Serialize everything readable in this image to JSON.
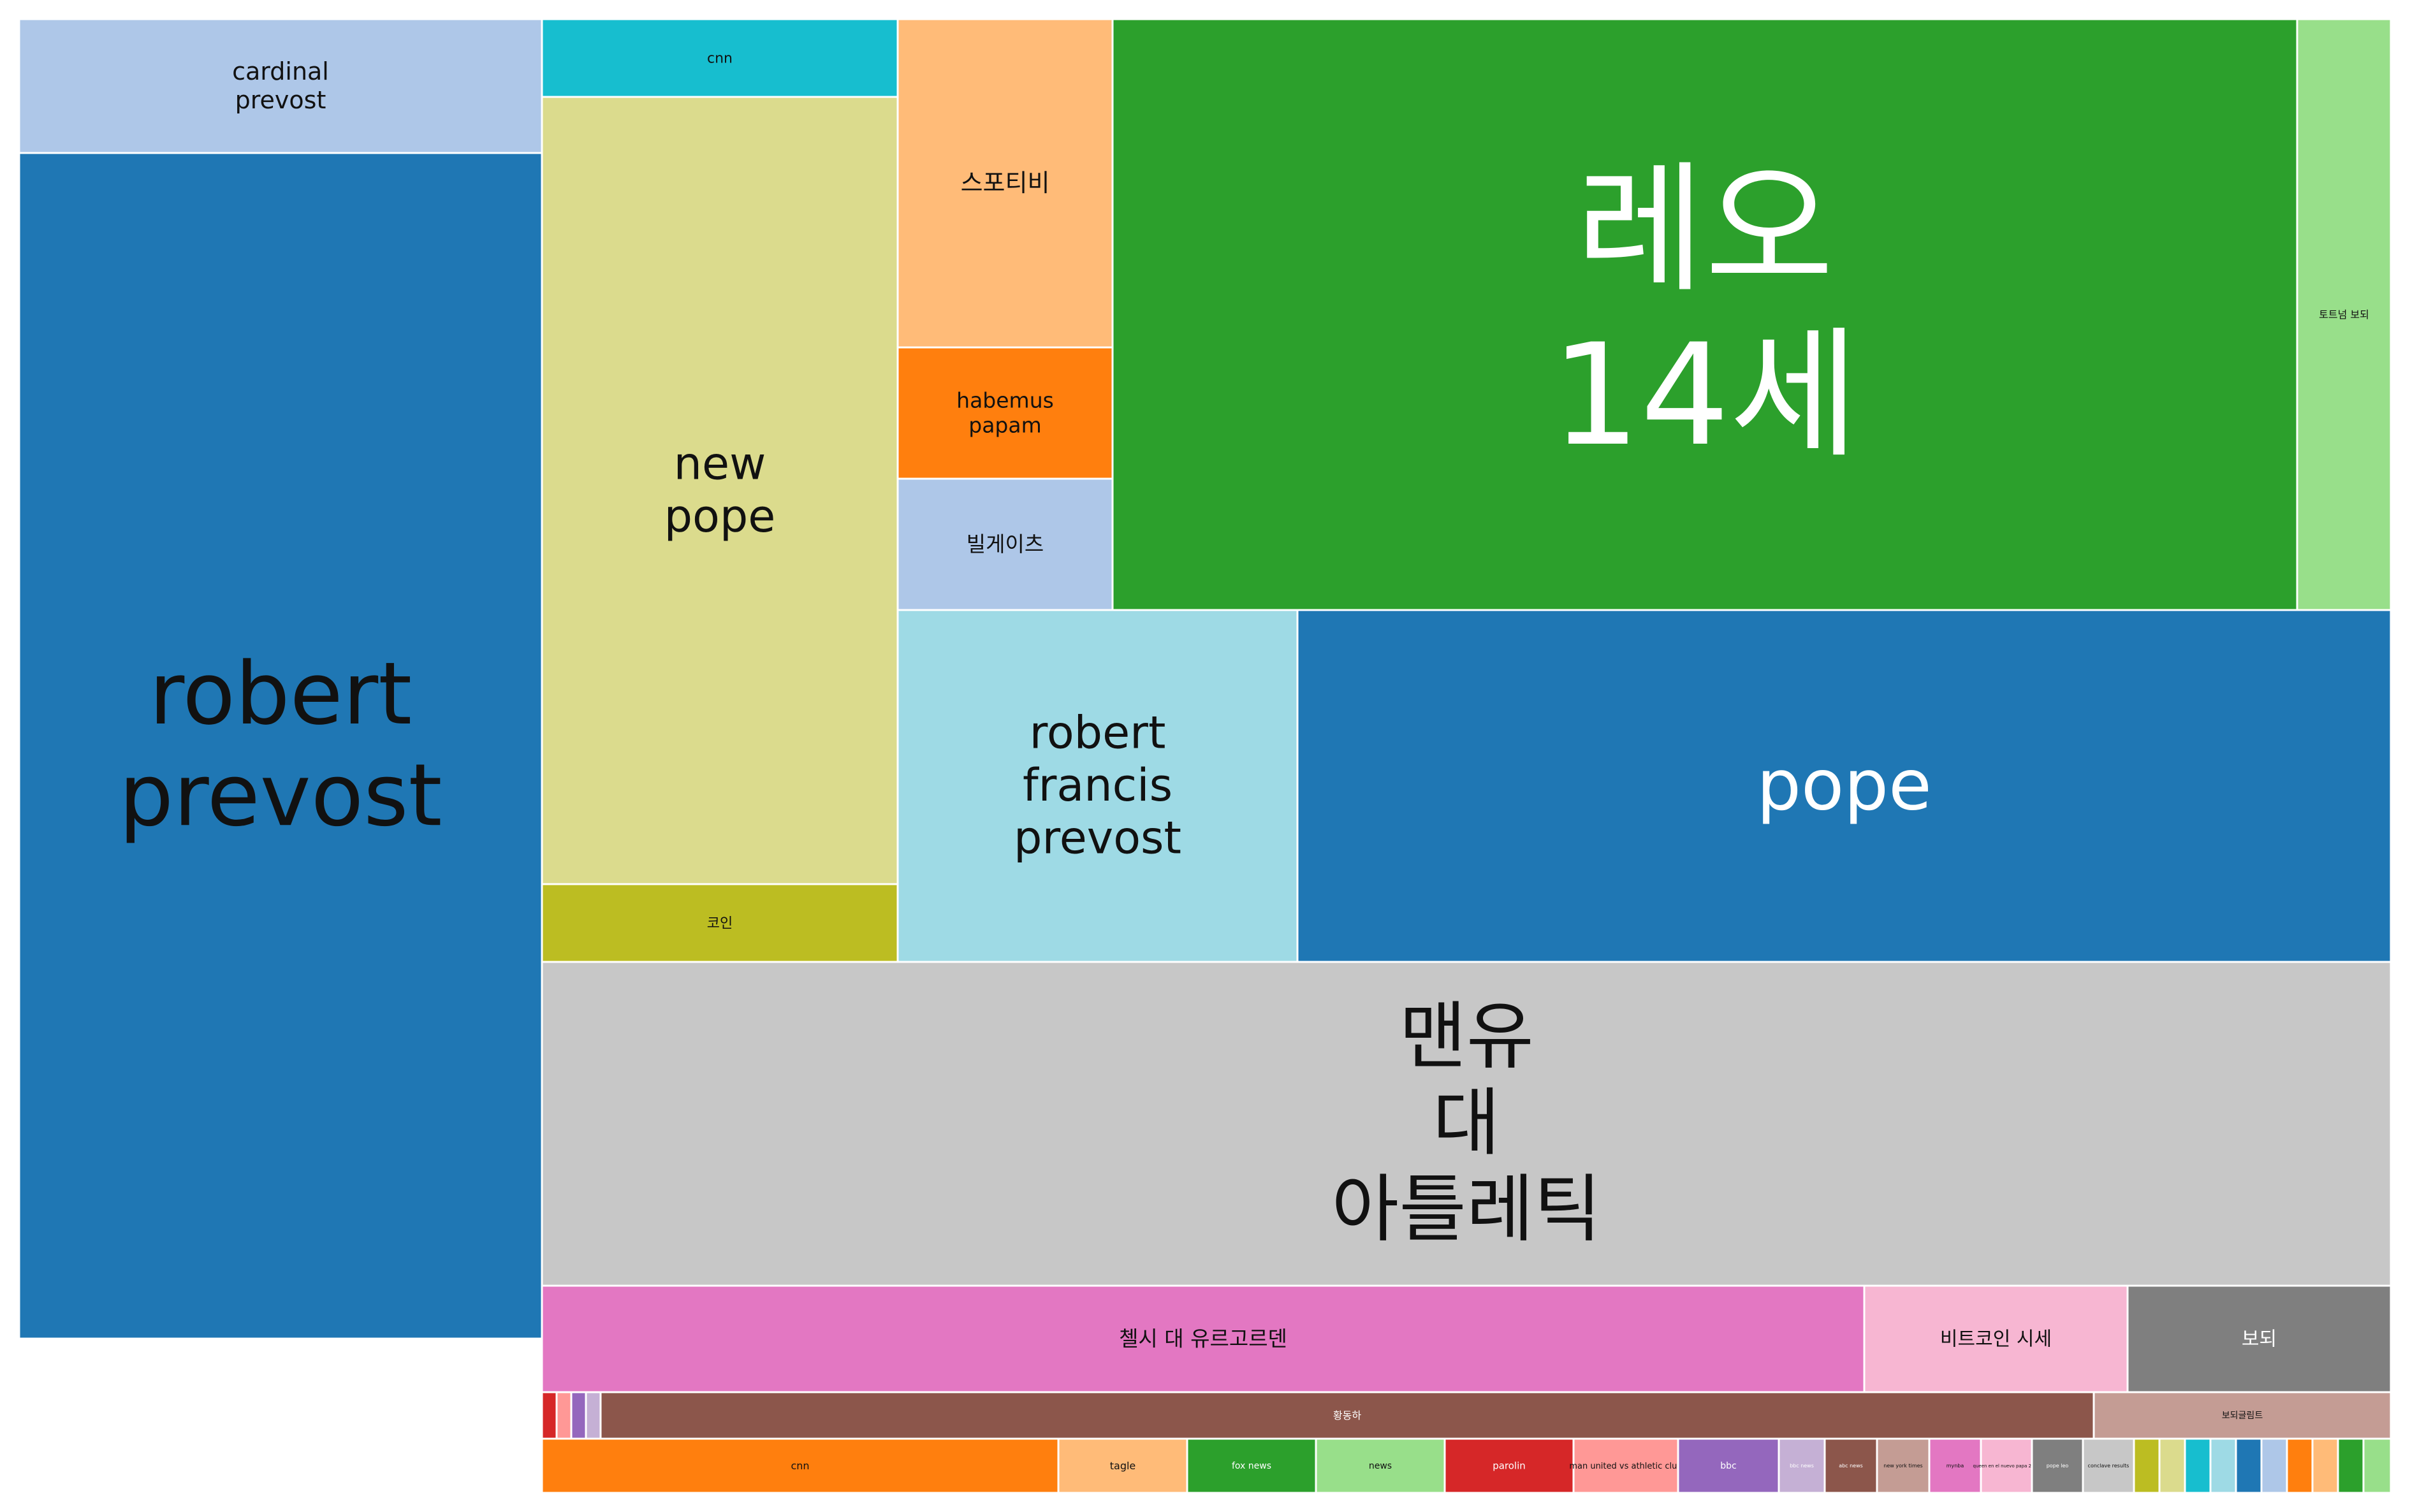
{
  "chart_data": {
    "type": "treemap",
    "title": "",
    "items": [
      {
        "label": "robert prevost",
        "value": 8300,
        "color": "#1f77b4"
      },
      {
        "label": "cardinal prevost",
        "value": 2100,
        "color": "#aec7e8"
      },
      {
        "label": "cnn",
        "value": 620,
        "color": "#17becf"
      },
      {
        "label": "new pope",
        "value": 6250,
        "color": "#dbdb8d"
      },
      {
        "label": "코인",
        "value": 600,
        "color": "#bcbd22"
      },
      {
        "label": "스포티비",
        "value": 1570,
        "color": "#ffbb78"
      },
      {
        "label": "habemus papam",
        "value": 630,
        "color": "#ff7f0e"
      },
      {
        "label": "빌게이츠",
        "value": 630,
        "color": "#aec7e8"
      },
      {
        "label": "레오 14세",
        "value": 15600,
        "color": "#2ca02c"
      },
      {
        "label": "토트넘 보되",
        "value": 1310,
        "color": "#98df8a"
      },
      {
        "label": "robert francis prevost",
        "value": 3140,
        "color": "#9edae5"
      },
      {
        "label": "pope",
        "value": 8600,
        "color": "#1f77b4"
      },
      {
        "label": "맨유 대 아틀레틱",
        "value": 17100,
        "color": "#c7c7c7"
      },
      {
        "label": "첼시 대 유르고르덴",
        "value": 3090,
        "color": "#e377c2"
      },
      {
        "label": "비트코인 시세",
        "value": 620,
        "color": "#f7b6d2"
      },
      {
        "label": "보되",
        "value": 620,
        "color": "#7f7f7f"
      },
      {
        "label": "황동하",
        "value": 1900,
        "color": "#8c564b"
      },
      {
        "label": "보되글림트",
        "value": 390,
        "color": "#c49c94"
      },
      {
        "label": "",
        "value": 20,
        "color": "#d62728"
      },
      {
        "label": "",
        "value": 25,
        "color": "#ff9896"
      },
      {
        "label": "",
        "value": 25,
        "color": "#9467bd"
      },
      {
        "label": "",
        "value": 25,
        "color": "#c5b0d5"
      },
      {
        "label": "cnn",
        "value": 775,
        "color": "#ff7f0e"
      },
      {
        "label": "tagle",
        "value": 193,
        "color": "#ffbb78"
      },
      {
        "label": "fox news",
        "value": 193,
        "color": "#2ca02c"
      },
      {
        "label": "news",
        "value": 193,
        "color": "#98df8a"
      },
      {
        "label": "parolin",
        "value": 193,
        "color": "#d62728"
      },
      {
        "label": "man united vs athletic club",
        "value": 156,
        "color": "#ff9896"
      },
      {
        "label": "bbc",
        "value": 136,
        "color": "#9467bd"
      },
      {
        "label": "bbc news",
        "value": 78,
        "color": "#c5b0d5"
      },
      {
        "label": "abc news",
        "value": 78,
        "color": "#8c564b"
      },
      {
        "label": "new york times",
        "value": 78,
        "color": "#c49c94"
      },
      {
        "label": "mynba",
        "value": 78,
        "color": "#e377c2"
      },
      {
        "label": "queen en el nuevo papa 2025",
        "value": 78,
        "color": "#f7b6d2"
      },
      {
        "label": "pope leo",
        "value": 78,
        "color": "#7f7f7f"
      },
      {
        "label": "conclave results",
        "value": 78,
        "color": "#c7c7c7"
      },
      {
        "label": "",
        "value": 39,
        "color": "#bcbd22"
      },
      {
        "label": "",
        "value": 39,
        "color": "#dbdb8d"
      },
      {
        "label": "",
        "value": 39,
        "color": "#17becf"
      },
      {
        "label": "",
        "value": 39,
        "color": "#9edae5"
      },
      {
        "label": "",
        "value": 39,
        "color": "#1f77b4"
      },
      {
        "label": "",
        "value": 39,
        "color": "#aec7e8"
      },
      {
        "label": "",
        "value": 39,
        "color": "#ff7f0e"
      },
      {
        "label": "",
        "value": 39,
        "color": "#ffbb78"
      },
      {
        "label": "",
        "value": 39,
        "color": "#2ca02c"
      },
      {
        "label": "",
        "value": 39,
        "color": "#98df8a"
      }
    ]
  }
}
